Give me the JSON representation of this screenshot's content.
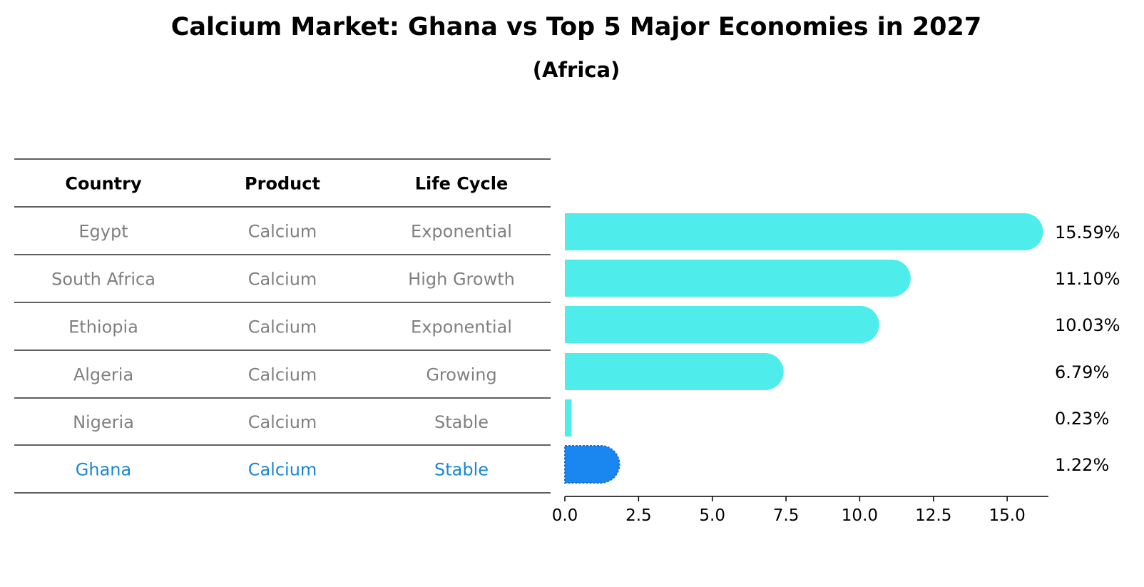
{
  "title": "Calcium Market: Ghana vs Top 5 Major Economies in 2027",
  "subtitle": "(Africa)",
  "table": {
    "headers": [
      "Country",
      "Product",
      "Life Cycle"
    ],
    "rows": [
      [
        "Egypt",
        "Calcium",
        "Exponential"
      ],
      [
        "South Africa",
        "Calcium",
        "High Growth"
      ],
      [
        "Ethiopia",
        "Calcium",
        "Exponential"
      ],
      [
        "Algeria",
        "Calcium",
        "Growing"
      ],
      [
        "Nigeria",
        "Calcium",
        "Stable"
      ],
      [
        "Ghana",
        "Calcium",
        "Stable"
      ]
    ],
    "highlight_row": "Ghana"
  },
  "colors": {
    "bar": "#4eecea",
    "highlight_bar": "#1a87f0",
    "highlight_text": "#1a87d0",
    "muted_text": "#808080"
  },
  "chart_data": {
    "type": "bar",
    "orientation": "horizontal",
    "title": "Calcium Market: Ghana vs Top 5 Major Economies in 2027",
    "subtitle": "(Africa)",
    "categories": [
      "Egypt",
      "South Africa",
      "Ethiopia",
      "Algeria",
      "Nigeria",
      "Ghana"
    ],
    "values": [
      15.59,
      11.1,
      10.03,
      6.79,
      0.23,
      1.22
    ],
    "value_labels": [
      "15.59%",
      "11.10%",
      "10.03%",
      "6.79%",
      "0.23%",
      "1.22%"
    ],
    "highlight": "Ghana",
    "xlim": [
      0,
      16.4
    ],
    "xticks": [
      0.0,
      2.5,
      5.0,
      7.5,
      10.0,
      12.5,
      15.0
    ],
    "xtick_labels": [
      "0.0",
      "2.5",
      "5.0",
      "7.5",
      "10.0",
      "12.5",
      "15.0"
    ],
    "xlabel": "",
    "ylabel": "",
    "grid": false
  }
}
